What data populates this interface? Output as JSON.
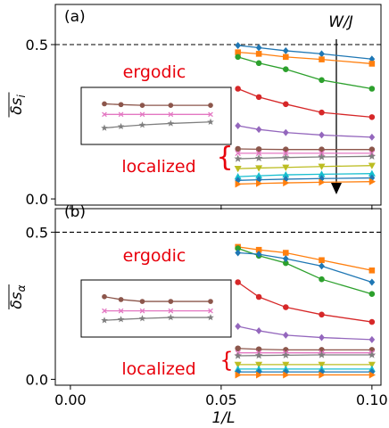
{
  "chart_data": [
    {
      "type": "line",
      "panel_label": "(a)",
      "ylabel_base": "δs",
      "ylabel_sub": "i",
      "xlim": [
        -0.005,
        0.103
      ],
      "ylim": [
        -0.02,
        0.63
      ],
      "yticks": [
        0.0,
        0.5
      ],
      "ytick_labels": [
        "0.0",
        "0.5"
      ],
      "reference_line": 0.5,
      "annotations": {
        "arrow_label": "W/J",
        "ergodic": "ergodic",
        "localized": "localized"
      },
      "x": [
        0.05556,
        0.0625,
        0.07143,
        0.08333,
        0.1
      ],
      "series": [
        {
          "color": "#1f77b4",
          "marker": "D",
          "values": [
            0.497,
            0.49,
            0.48,
            0.47,
            0.453
          ]
        },
        {
          "color": "#ff7f0e",
          "marker": "s",
          "values": [
            0.475,
            0.47,
            0.46,
            0.452,
            0.438
          ]
        },
        {
          "color": "#2ca02c",
          "marker": "o",
          "values": [
            0.46,
            0.44,
            0.42,
            0.385,
            0.357
          ]
        },
        {
          "color": "#d62728",
          "marker": "o",
          "values": [
            0.357,
            0.33,
            0.307,
            0.28,
            0.265
          ]
        },
        {
          "color": "#9467bd",
          "marker": "D",
          "values": [
            0.237,
            0.225,
            0.215,
            0.207,
            0.2
          ]
        },
        {
          "color": "#8c564b",
          "marker": "o",
          "values": [
            0.162,
            0.161,
            0.16,
            0.16,
            0.16
          ]
        },
        {
          "color": "#e377c2",
          "marker": "x",
          "values": [
            0.148,
            0.148,
            0.148,
            0.148,
            0.148
          ]
        },
        {
          "color": "#7f7f7f",
          "marker": "*",
          "values": [
            0.13,
            0.132,
            0.134,
            0.136,
            0.138
          ]
        },
        {
          "color": "#bcbd22",
          "marker": "v",
          "values": [
            0.098,
            0.1,
            0.102,
            0.105,
            0.108
          ]
        },
        {
          "color": "#17becf",
          "marker": "^",
          "values": [
            0.072,
            0.075,
            0.078,
            0.08,
            0.082
          ]
        },
        {
          "color": "#1f77b4",
          "marker": "D",
          "values": [
            0.06,
            0.062,
            0.064,
            0.066,
            0.068
          ]
        },
        {
          "color": "#ff7f0e",
          "marker": ">",
          "values": [
            0.048,
            0.05,
            0.052,
            0.054,
            0.056
          ]
        }
      ],
      "inset": {
        "series": [
          {
            "color": "#8c564b",
            "marker": "o",
            "values": [
              0.162,
              0.161,
              0.16,
              0.16,
              0.16
            ]
          },
          {
            "color": "#e377c2",
            "marker": "x",
            "values": [
              0.148,
              0.148,
              0.148,
              0.148,
              0.148
            ]
          },
          {
            "color": "#7f7f7f",
            "marker": "*",
            "values": [
              0.13,
              0.132,
              0.134,
              0.136,
              0.138
            ]
          }
        ]
      }
    },
    {
      "type": "line",
      "panel_label": "(b)",
      "ylabel_base": "δs",
      "ylabel_sub": "α",
      "xlabel": "1/L",
      "xlim": [
        -0.005,
        0.103
      ],
      "ylim": [
        -0.02,
        0.58
      ],
      "xticks": [
        0.0,
        0.05,
        0.1
      ],
      "xtick_labels": [
        "0.00",
        "0.05",
        "0.10"
      ],
      "yticks": [
        0.0,
        0.5
      ],
      "ytick_labels": [
        "0.0",
        "0.5"
      ],
      "reference_line": 0.5,
      "annotations": {
        "ergodic": "ergodic",
        "localized": "localized"
      },
      "x": [
        0.05556,
        0.0625,
        0.07143,
        0.08333,
        0.1
      ],
      "series": [
        {
          "color": "#ff7f0e",
          "marker": "s",
          "values": [
            0.45,
            0.44,
            0.43,
            0.405,
            0.37
          ]
        },
        {
          "color": "#2ca02c",
          "marker": "o",
          "values": [
            0.445,
            0.42,
            0.395,
            0.34,
            0.29
          ]
        },
        {
          "color": "#1f77b4",
          "marker": "D",
          "values": [
            0.43,
            0.425,
            0.41,
            0.385,
            0.33
          ]
        },
        {
          "color": "#d62728",
          "marker": "o",
          "values": [
            0.33,
            0.28,
            0.245,
            0.22,
            0.195
          ]
        },
        {
          "color": "#9467bd",
          "marker": "D",
          "values": [
            0.18,
            0.165,
            0.15,
            0.142,
            0.135
          ]
        },
        {
          "color": "#8c564b",
          "marker": "o",
          "values": [
            0.105,
            0.102,
            0.1,
            0.1,
            0.1
          ]
        },
        {
          "color": "#e377c2",
          "marker": "x",
          "values": [
            0.09,
            0.09,
            0.09,
            0.09,
            0.09
          ]
        },
        {
          "color": "#7f7f7f",
          "marker": "*",
          "values": [
            0.08,
            0.081,
            0.082,
            0.083,
            0.083
          ]
        },
        {
          "color": "#bcbd22",
          "marker": "v",
          "values": [
            0.05,
            0.05,
            0.05,
            0.05,
            0.05
          ]
        },
        {
          "color": "#17becf",
          "marker": "^",
          "values": [
            0.035,
            0.035,
            0.035,
            0.035,
            0.035
          ]
        },
        {
          "color": "#1f77b4",
          "marker": "D",
          "values": [
            0.025,
            0.025,
            0.025,
            0.025,
            0.025
          ]
        },
        {
          "color": "#ff7f0e",
          "marker": ">",
          "values": [
            0.015,
            0.015,
            0.015,
            0.015,
            0.015
          ]
        }
      ],
      "inset": {
        "series": [
          {
            "color": "#8c564b",
            "marker": "o",
            "values": [
              0.105,
              0.102,
              0.1,
              0.1,
              0.1
            ]
          },
          {
            "color": "#e377c2",
            "marker": "x",
            "values": [
              0.09,
              0.09,
              0.09,
              0.09,
              0.09
            ]
          },
          {
            "color": "#7f7f7f",
            "marker": "*",
            "values": [
              0.08,
              0.081,
              0.082,
              0.083,
              0.083
            ]
          }
        ]
      }
    }
  ]
}
